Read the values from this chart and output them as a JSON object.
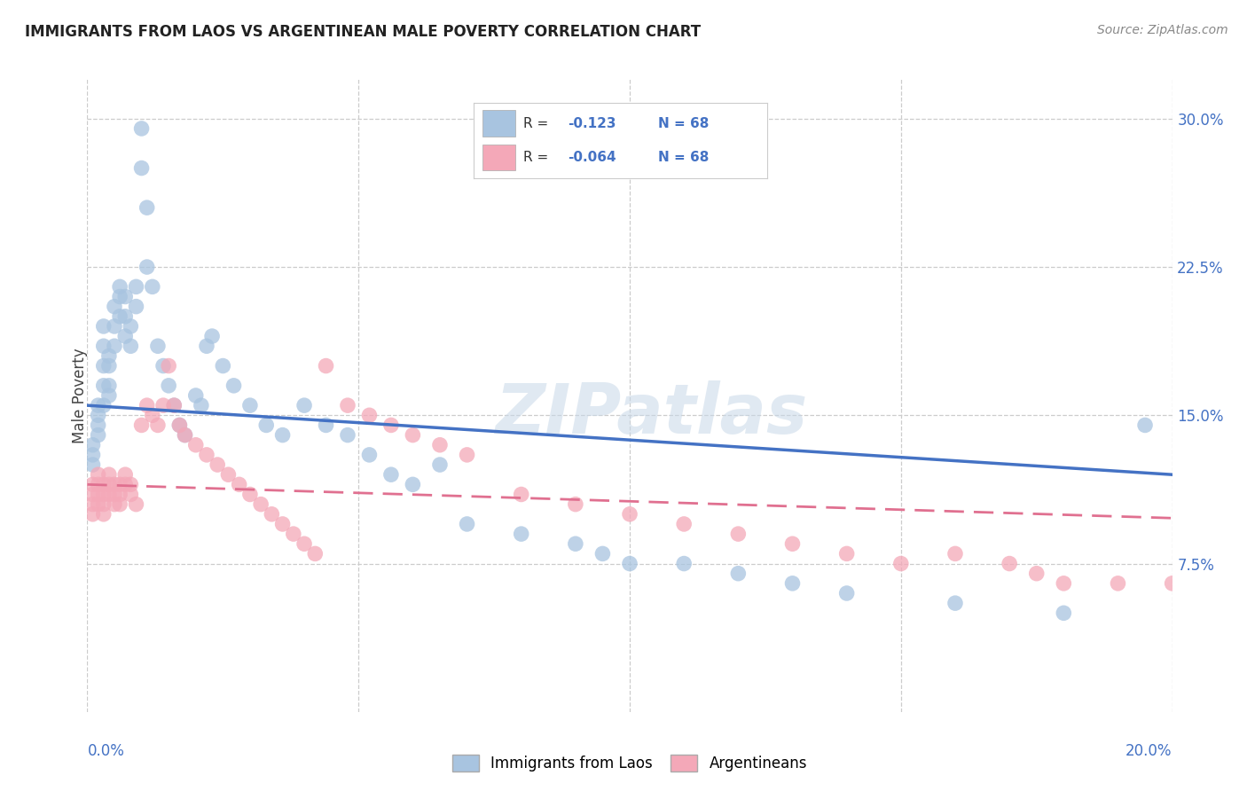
{
  "title": "IMMIGRANTS FROM LAOS VS ARGENTINEAN MALE POVERTY CORRELATION CHART",
  "source": "Source: ZipAtlas.com",
  "ylabel": "Male Poverty",
  "yticks": [
    "7.5%",
    "15.0%",
    "22.5%",
    "30.0%"
  ],
  "ytick_vals": [
    0.075,
    0.15,
    0.225,
    0.3
  ],
  "xmin": 0.0,
  "xmax": 0.2,
  "ymin": 0.0,
  "ymax": 0.32,
  "r_blue": -0.123,
  "r_pink": -0.064,
  "n_blue": 68,
  "n_pink": 68,
  "blue_color": "#a8c4e0",
  "pink_color": "#f4a8b8",
  "line_blue": "#4472c4",
  "line_pink": "#e07090",
  "legend_label_blue": "Immigrants from Laos",
  "legend_label_pink": "Argentineans",
  "watermark": "ZIPatlas",
  "blue_x": [
    0.001,
    0.001,
    0.001,
    0.002,
    0.002,
    0.002,
    0.002,
    0.003,
    0.003,
    0.003,
    0.003,
    0.003,
    0.004,
    0.004,
    0.004,
    0.004,
    0.005,
    0.005,
    0.005,
    0.006,
    0.006,
    0.006,
    0.007,
    0.007,
    0.007,
    0.008,
    0.008,
    0.009,
    0.009,
    0.01,
    0.01,
    0.011,
    0.011,
    0.012,
    0.013,
    0.014,
    0.015,
    0.016,
    0.017,
    0.018,
    0.02,
    0.021,
    0.022,
    0.023,
    0.025,
    0.027,
    0.03,
    0.033,
    0.036,
    0.04,
    0.044,
    0.048,
    0.052,
    0.056,
    0.06,
    0.065,
    0.07,
    0.08,
    0.09,
    0.095,
    0.1,
    0.11,
    0.12,
    0.13,
    0.14,
    0.16,
    0.18,
    0.195
  ],
  "blue_y": [
    0.135,
    0.13,
    0.125,
    0.155,
    0.15,
    0.145,
    0.14,
    0.195,
    0.185,
    0.175,
    0.165,
    0.155,
    0.18,
    0.175,
    0.165,
    0.16,
    0.205,
    0.195,
    0.185,
    0.215,
    0.21,
    0.2,
    0.21,
    0.2,
    0.19,
    0.195,
    0.185,
    0.215,
    0.205,
    0.295,
    0.275,
    0.255,
    0.225,
    0.215,
    0.185,
    0.175,
    0.165,
    0.155,
    0.145,
    0.14,
    0.16,
    0.155,
    0.185,
    0.19,
    0.175,
    0.165,
    0.155,
    0.145,
    0.14,
    0.155,
    0.145,
    0.14,
    0.13,
    0.12,
    0.115,
    0.125,
    0.095,
    0.09,
    0.085,
    0.08,
    0.075,
    0.075,
    0.07,
    0.065,
    0.06,
    0.055,
    0.05,
    0.145
  ],
  "pink_x": [
    0.001,
    0.001,
    0.001,
    0.001,
    0.002,
    0.002,
    0.002,
    0.002,
    0.003,
    0.003,
    0.003,
    0.003,
    0.004,
    0.004,
    0.004,
    0.005,
    0.005,
    0.005,
    0.006,
    0.006,
    0.006,
    0.007,
    0.007,
    0.008,
    0.008,
    0.009,
    0.01,
    0.011,
    0.012,
    0.013,
    0.014,
    0.015,
    0.016,
    0.017,
    0.018,
    0.02,
    0.022,
    0.024,
    0.026,
    0.028,
    0.03,
    0.032,
    0.034,
    0.036,
    0.038,
    0.04,
    0.042,
    0.044,
    0.048,
    0.052,
    0.056,
    0.06,
    0.065,
    0.07,
    0.08,
    0.09,
    0.1,
    0.11,
    0.12,
    0.13,
    0.14,
    0.15,
    0.16,
    0.17,
    0.175,
    0.18,
    0.19,
    0.2
  ],
  "pink_y": [
    0.115,
    0.11,
    0.105,
    0.1,
    0.12,
    0.115,
    0.11,
    0.105,
    0.115,
    0.11,
    0.105,
    0.1,
    0.12,
    0.115,
    0.11,
    0.115,
    0.11,
    0.105,
    0.115,
    0.11,
    0.105,
    0.12,
    0.115,
    0.115,
    0.11,
    0.105,
    0.145,
    0.155,
    0.15,
    0.145,
    0.155,
    0.175,
    0.155,
    0.145,
    0.14,
    0.135,
    0.13,
    0.125,
    0.12,
    0.115,
    0.11,
    0.105,
    0.1,
    0.095,
    0.09,
    0.085,
    0.08,
    0.175,
    0.155,
    0.15,
    0.145,
    0.14,
    0.135,
    0.13,
    0.11,
    0.105,
    0.1,
    0.095,
    0.09,
    0.085,
    0.08,
    0.075,
    0.08,
    0.075,
    0.07,
    0.065,
    0.065,
    0.065
  ]
}
